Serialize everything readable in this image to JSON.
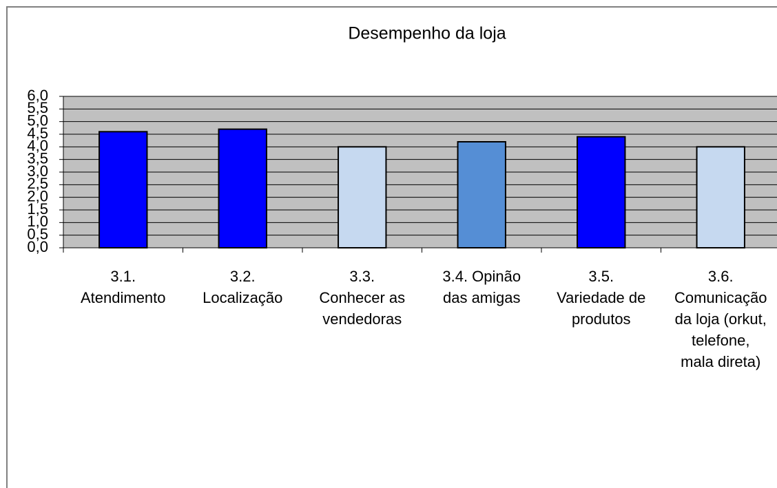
{
  "chart_data": {
    "type": "bar",
    "title": "Desempenho da loja",
    "categories": [
      "3.1.\nAtendimento",
      "3.2.\nLocalização",
      "3.3.\nConhecer as\nvendedoras",
      "3.4. Opinão\ndas amigas",
      "3.5.\nVariedade de\nprodutos",
      "3.6.\nComunicação\nda loja (orkut,\ntelefone,\nmala direta)"
    ],
    "values": [
      4.6,
      4.7,
      4.0,
      4.2,
      4.4,
      4.0
    ],
    "colors": [
      "#0000ff",
      "#0000ff",
      "#c6d9f0",
      "#558ed5",
      "#0000ff",
      "#c6d9f0"
    ],
    "ylim": [
      0,
      6
    ],
    "yticks": [
      {
        "value": 0,
        "label": "0,0"
      },
      {
        "value": 0.5,
        "label": "0,5"
      },
      {
        "value": 1,
        "label": "1,0"
      },
      {
        "value": 1.5,
        "label": "1,5"
      },
      {
        "value": 2,
        "label": "2,0"
      },
      {
        "value": 2.5,
        "label": "2,5"
      },
      {
        "value": 3,
        "label": "3,0"
      },
      {
        "value": 3.5,
        "label": "3,5"
      },
      {
        "value": 4,
        "label": "4,0"
      },
      {
        "value": 4.5,
        "label": "4,5"
      },
      {
        "value": 5,
        "label": "5,0"
      },
      {
        "value": 5.5,
        "label": "5,5"
      },
      {
        "value": 6,
        "label": "6,0"
      }
    ],
    "grid": true
  }
}
